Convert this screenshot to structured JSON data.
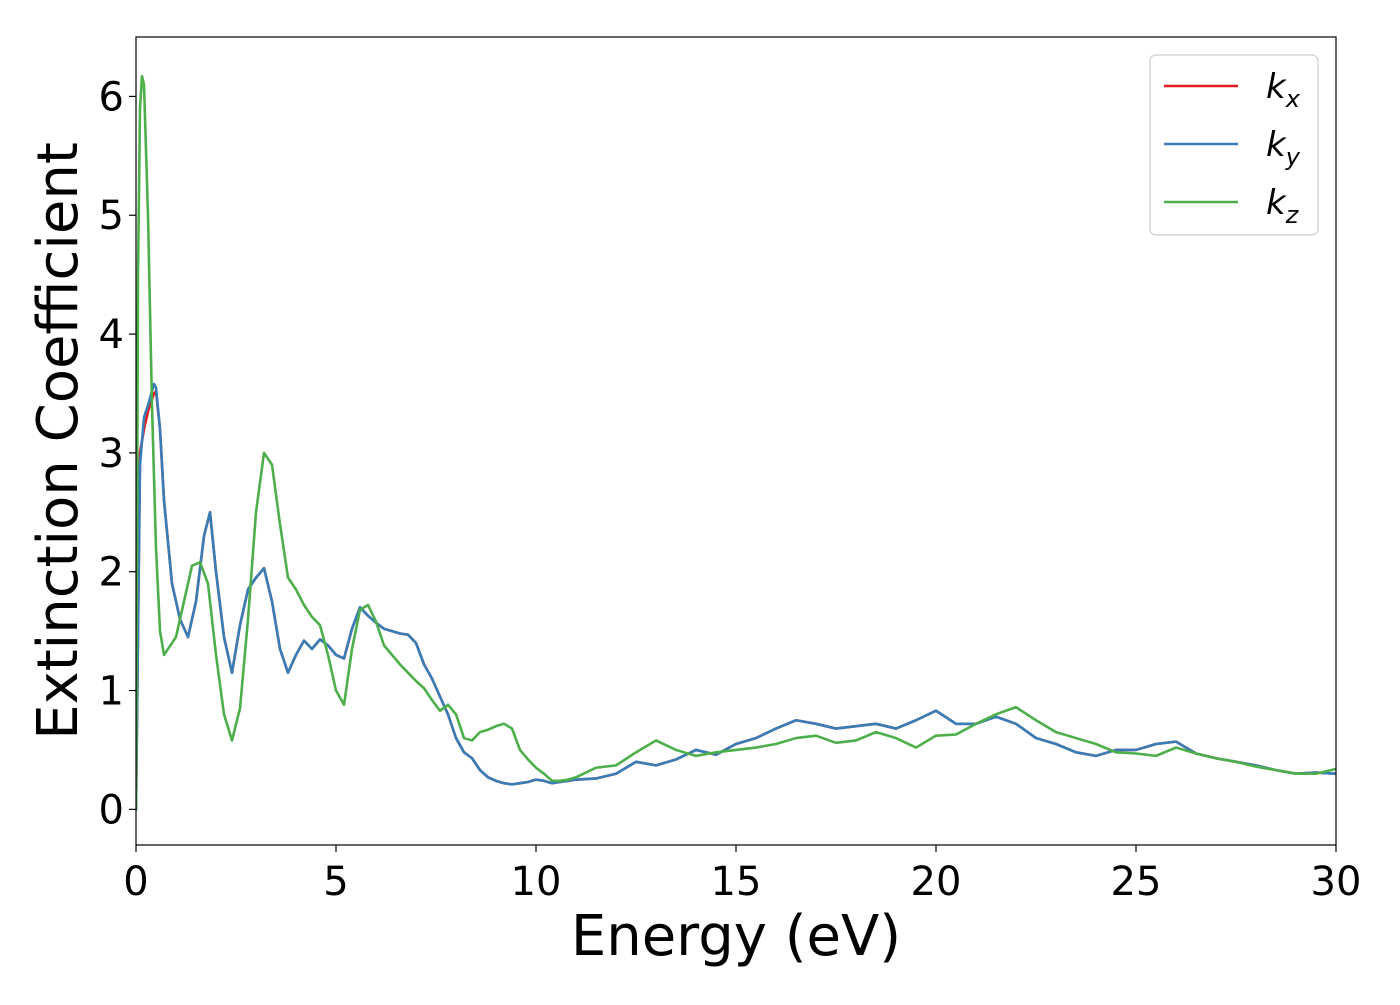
{
  "chart_data": {
    "type": "line",
    "xlabel": "Energy (eV)",
    "ylabel": "Extinction Coefficient",
    "xlim": [
      0,
      30
    ],
    "ylim": [
      -0.3,
      6.5
    ],
    "xticks": [
      0,
      5,
      10,
      15,
      20,
      25,
      30
    ],
    "yticks": [
      0,
      1,
      2,
      3,
      4,
      5,
      6
    ],
    "grid": false,
    "legend_position": "top-right",
    "series": [
      {
        "name": "k_x",
        "label_base": "k",
        "label_sub": "x",
        "color": "#e41a1c",
        "x": [
          0,
          0.1,
          0.2,
          0.3,
          0.45,
          0.5,
          0.6,
          0.7,
          0.9,
          1.1,
          1.3,
          1.5,
          1.7,
          1.85,
          2.0,
          2.2,
          2.4,
          2.6,
          2.8,
          3.0,
          3.2,
          3.4,
          3.6,
          3.8,
          4.0,
          4.2,
          4.4,
          4.6,
          4.8,
          5.0,
          5.2,
          5.4,
          5.6,
          5.8,
          6.0,
          6.2,
          6.4,
          6.6,
          6.8,
          7.0,
          7.2,
          7.4,
          7.6,
          7.8,
          8.0,
          8.2,
          8.4,
          8.6,
          8.8,
          9.0,
          9.2,
          9.4,
          9.6,
          9.8,
          10.0,
          10.2,
          10.4,
          10.6,
          10.8,
          11.0,
          11.5,
          12.0,
          12.5,
          13.0,
          13.5,
          14.0,
          14.5,
          15.0,
          15.5,
          16.0,
          16.5,
          17.0,
          17.5,
          18.0,
          18.5,
          19.0,
          19.5,
          20.0,
          20.5,
          21.0,
          21.5,
          22.0,
          22.5,
          23.0,
          23.5,
          24.0,
          24.5,
          25.0,
          25.5,
          26.0,
          26.5,
          27.0,
          27.5,
          28.0,
          28.5,
          29.0,
          29.5,
          30.0
        ],
        "y": [
          0,
          3.0,
          3.2,
          3.35,
          3.5,
          3.52,
          3.2,
          2.6,
          1.9,
          1.6,
          1.45,
          1.75,
          2.3,
          2.5,
          2.0,
          1.45,
          1.15,
          1.55,
          1.85,
          1.95,
          2.03,
          1.75,
          1.35,
          1.15,
          1.3,
          1.42,
          1.35,
          1.43,
          1.38,
          1.3,
          1.27,
          1.52,
          1.7,
          1.63,
          1.57,
          1.52,
          1.5,
          1.48,
          1.47,
          1.4,
          1.22,
          1.1,
          0.95,
          0.8,
          0.6,
          0.48,
          0.43,
          0.33,
          0.27,
          0.24,
          0.22,
          0.21,
          0.22,
          0.23,
          0.25,
          0.24,
          0.22,
          0.23,
          0.24,
          0.25,
          0.26,
          0.3,
          0.4,
          0.37,
          0.42,
          0.5,
          0.46,
          0.55,
          0.6,
          0.68,
          0.75,
          0.72,
          0.68,
          0.7,
          0.72,
          0.68,
          0.75,
          0.83,
          0.72,
          0.72,
          0.78,
          0.72,
          0.6,
          0.55,
          0.48,
          0.45,
          0.5,
          0.5,
          0.55,
          0.57,
          0.47,
          0.43,
          0.4,
          0.37,
          0.33,
          0.3,
          0.31,
          0.3
        ]
      },
      {
        "name": "k_y",
        "label_base": "k",
        "label_sub": "y",
        "color": "#377eb8",
        "x": [
          0,
          0.1,
          0.2,
          0.3,
          0.45,
          0.5,
          0.6,
          0.7,
          0.9,
          1.1,
          1.3,
          1.5,
          1.7,
          1.85,
          2.0,
          2.2,
          2.4,
          2.6,
          2.8,
          3.0,
          3.2,
          3.4,
          3.6,
          3.8,
          4.0,
          4.2,
          4.4,
          4.6,
          4.8,
          5.0,
          5.2,
          5.4,
          5.6,
          5.8,
          6.0,
          6.2,
          6.4,
          6.6,
          6.8,
          7.0,
          7.2,
          7.4,
          7.6,
          7.8,
          8.0,
          8.2,
          8.4,
          8.6,
          8.8,
          9.0,
          9.2,
          9.4,
          9.6,
          9.8,
          10.0,
          10.2,
          10.4,
          10.6,
          10.8,
          11.0,
          11.5,
          12.0,
          12.5,
          13.0,
          13.5,
          14.0,
          14.5,
          15.0,
          15.5,
          16.0,
          16.5,
          17.0,
          17.5,
          18.0,
          18.5,
          19.0,
          19.5,
          20.0,
          20.5,
          21.0,
          21.5,
          22.0,
          22.5,
          23.0,
          23.5,
          24.0,
          24.5,
          25.0,
          25.5,
          26.0,
          26.5,
          27.0,
          27.5,
          28.0,
          28.5,
          29.0,
          29.5,
          30.0
        ],
        "y": [
          0,
          2.9,
          3.3,
          3.4,
          3.58,
          3.55,
          3.2,
          2.6,
          1.9,
          1.6,
          1.45,
          1.75,
          2.3,
          2.5,
          2.0,
          1.45,
          1.15,
          1.55,
          1.85,
          1.95,
          2.03,
          1.75,
          1.35,
          1.15,
          1.3,
          1.42,
          1.35,
          1.43,
          1.38,
          1.3,
          1.27,
          1.52,
          1.7,
          1.63,
          1.57,
          1.52,
          1.5,
          1.48,
          1.47,
          1.4,
          1.22,
          1.1,
          0.95,
          0.8,
          0.6,
          0.48,
          0.43,
          0.33,
          0.27,
          0.24,
          0.22,
          0.21,
          0.22,
          0.23,
          0.25,
          0.24,
          0.22,
          0.23,
          0.24,
          0.25,
          0.26,
          0.3,
          0.4,
          0.37,
          0.42,
          0.5,
          0.46,
          0.55,
          0.6,
          0.68,
          0.75,
          0.72,
          0.68,
          0.7,
          0.72,
          0.68,
          0.75,
          0.83,
          0.72,
          0.72,
          0.78,
          0.72,
          0.6,
          0.55,
          0.48,
          0.45,
          0.5,
          0.5,
          0.55,
          0.57,
          0.47,
          0.43,
          0.4,
          0.37,
          0.33,
          0.3,
          0.31,
          0.3
        ]
      },
      {
        "name": "k_z",
        "label_base": "k",
        "label_sub": "z",
        "color": "#4daf4a",
        "x": [
          0,
          0.05,
          0.1,
          0.15,
          0.2,
          0.3,
          0.4,
          0.5,
          0.6,
          0.7,
          0.8,
          1.0,
          1.2,
          1.4,
          1.6,
          1.8,
          2.0,
          2.2,
          2.4,
          2.6,
          2.8,
          3.0,
          3.2,
          3.4,
          3.6,
          3.8,
          4.0,
          4.2,
          4.4,
          4.6,
          4.8,
          5.0,
          5.2,
          5.4,
          5.6,
          5.8,
          6.0,
          6.2,
          6.4,
          6.6,
          6.8,
          7.0,
          7.2,
          7.4,
          7.6,
          7.8,
          8.0,
          8.2,
          8.4,
          8.6,
          8.8,
          9.0,
          9.2,
          9.4,
          9.6,
          9.8,
          10.0,
          10.2,
          10.4,
          10.6,
          10.8,
          11.0,
          11.5,
          12.0,
          12.5,
          13.0,
          13.5,
          14.0,
          14.5,
          15.0,
          15.5,
          16.0,
          16.5,
          17.0,
          17.5,
          18.0,
          18.5,
          19.0,
          19.5,
          20.0,
          20.5,
          21.0,
          21.5,
          22.0,
          22.5,
          23.0,
          23.5,
          24.0,
          24.5,
          25.0,
          25.5,
          26.0,
          26.5,
          27.0,
          27.5,
          28.0,
          28.5,
          29.0,
          29.5,
          30.0
        ],
        "y": [
          0,
          4.5,
          5.9,
          6.17,
          6.1,
          5.0,
          3.4,
          2.2,
          1.5,
          1.3,
          1.35,
          1.45,
          1.75,
          2.05,
          2.08,
          1.9,
          1.3,
          0.8,
          0.58,
          0.85,
          1.6,
          2.5,
          3.0,
          2.9,
          2.4,
          1.95,
          1.85,
          1.72,
          1.62,
          1.55,
          1.3,
          1.0,
          0.88,
          1.35,
          1.68,
          1.72,
          1.58,
          1.38,
          1.3,
          1.22,
          1.15,
          1.08,
          1.02,
          0.92,
          0.83,
          0.88,
          0.8,
          0.6,
          0.58,
          0.65,
          0.67,
          0.7,
          0.72,
          0.68,
          0.5,
          0.42,
          0.35,
          0.3,
          0.24,
          0.24,
          0.25,
          0.27,
          0.35,
          0.37,
          0.48,
          0.58,
          0.5,
          0.45,
          0.48,
          0.5,
          0.52,
          0.55,
          0.6,
          0.62,
          0.56,
          0.58,
          0.65,
          0.6,
          0.52,
          0.62,
          0.63,
          0.72,
          0.8,
          0.86,
          0.75,
          0.65,
          0.6,
          0.55,
          0.48,
          0.47,
          0.45,
          0.52,
          0.47,
          0.43,
          0.4,
          0.36,
          0.33,
          0.3,
          0.3,
          0.34
        ]
      }
    ]
  }
}
